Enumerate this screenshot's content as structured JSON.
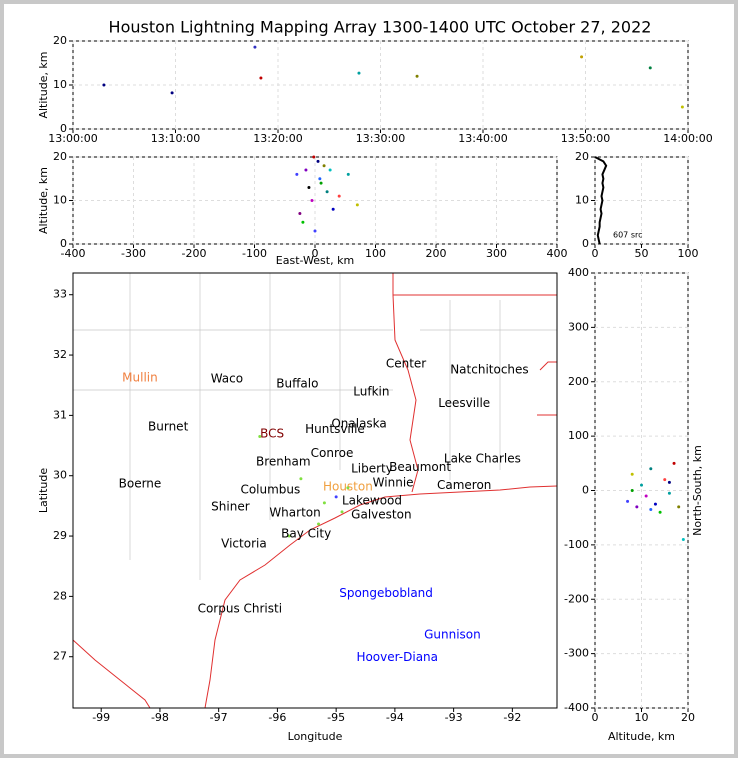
{
  "title": "Houston Lightning Mapping Array 1300-1400 UTC October 27, 2022",
  "chart_data": [
    {
      "type": "scatter",
      "ylabel": "Altitude, km",
      "xlim": [
        "13:00:00",
        "14:00:00"
      ],
      "xticks": [
        "13:00:00",
        "13:10:00",
        "13:20:00",
        "13:30:00",
        "13:40:00",
        "13:50:00",
        "14:00:00"
      ],
      "ylim": [
        0,
        20
      ],
      "yticks": [
        0,
        10,
        20
      ],
      "grid": true,
      "x": [
        "13:03:01",
        "13:09:40",
        "13:17:45",
        "13:18:20",
        "13:27:54",
        "13:33:34",
        "13:49:37",
        "13:56:19",
        "13:59:27"
      ],
      "y": [
        10,
        8.2,
        18.6,
        11.6,
        12.7,
        12,
        16.4,
        13.9,
        5
      ],
      "colors": [
        "#000080",
        "#000080",
        "#3030c0",
        "#c00000",
        "#00a0a0",
        "#808000",
        "#c0a000",
        "#008040",
        "#c0c000"
      ]
    },
    {
      "type": "scatter",
      "xlabel": "East-West, km",
      "ylabel": "Altitude, km",
      "xlim": [
        -400,
        400
      ],
      "xticks": [
        -400,
        -300,
        -200,
        -100,
        0,
        100,
        200,
        300,
        400
      ],
      "ylim": [
        0,
        20
      ],
      "yticks": [
        0,
        10,
        20
      ],
      "grid": true,
      "x": [
        -30,
        -15,
        5,
        10,
        -5,
        20,
        30,
        -20,
        40,
        55,
        0,
        15,
        -10,
        25,
        70,
        -25,
        8,
        -2
      ],
      "y": [
        16,
        17,
        19,
        14,
        10,
        12,
        8,
        5,
        11,
        16,
        3,
        18,
        13,
        17,
        9,
        7,
        15,
        20
      ],
      "colors": [
        "#4040ff",
        "#8000c0",
        "#000080",
        "#00a000",
        "#c000c0",
        "#008080",
        "#0000c0",
        "#00c000",
        "#ff4040",
        "#00a0a0",
        "#4040ff",
        "#808000",
        "#000000",
        "#00c0c0",
        "#c0c000",
        "#800080",
        "#2060ff",
        "#c00000"
      ]
    },
    {
      "type": "line",
      "annotation": "607 src",
      "xlim": [
        0,
        100
      ],
      "xticks": [
        0,
        50,
        100
      ],
      "ylim": [
        0,
        20
      ],
      "yticks": [
        0,
        10,
        20
      ],
      "grid": true,
      "x": [
        5,
        4,
        3,
        4,
        5,
        5,
        6,
        7,
        6,
        7,
        8,
        7,
        8,
        9,
        8,
        9,
        8,
        10,
        12,
        9,
        0
      ],
      "y": [
        0,
        1,
        2,
        3,
        4,
        5,
        6,
        7,
        8,
        9,
        10,
        11,
        12,
        13,
        14,
        15,
        16,
        17,
        18,
        19,
        20
      ],
      "color": "#000000"
    },
    {
      "type": "map",
      "xlabel": "Longitude",
      "ylabel": "Latitude",
      "xlim": [
        -99.48,
        -91.24
      ],
      "xticks": [
        -99,
        -98,
        -97,
        -96,
        -95,
        -94,
        -93,
        -92
      ],
      "ylim": [
        26.15,
        33.36
      ],
      "yticks": [
        27,
        28,
        29,
        30,
        31,
        32,
        33
      ],
      "grid": false,
      "x": [
        -96.3,
        -95.6,
        -95.2,
        -95.3,
        -94.9,
        -95.8,
        -94.8,
        -95.0
      ],
      "y": [
        30.65,
        29.95,
        29.55,
        29.2,
        29.4,
        29.0,
        29.8,
        29.65
      ],
      "colors": [
        "#80e040",
        "#80e040",
        "#80e040",
        "#80e040",
        "#80e040",
        "#80e040",
        "#80e040",
        "#4040ff"
      ],
      "labels": [
        {
          "text": "Mullin",
          "lon": -98.34,
          "lat": 31.62,
          "color": "#f08040"
        },
        {
          "text": "Waco",
          "lon": -96.86,
          "lat": 31.6,
          "color": "#000000"
        },
        {
          "text": "Buffalo",
          "lon": -95.66,
          "lat": 31.52,
          "color": "#000000"
        },
        {
          "text": "Center",
          "lon": -93.81,
          "lat": 31.85,
          "color": "#000000"
        },
        {
          "text": "Natchitoches",
          "lon": -92.39,
          "lat": 31.75,
          "color": "#000000"
        },
        {
          "text": "Lufkin",
          "lon": -94.4,
          "lat": 31.39,
          "color": "#000000"
        },
        {
          "text": "Leesville",
          "lon": -92.82,
          "lat": 31.2,
          "color": "#000000"
        },
        {
          "text": "Burnet",
          "lon": -97.86,
          "lat": 30.81,
          "color": "#000000"
        },
        {
          "text": "BCS",
          "lon": -96.09,
          "lat": 30.69,
          "color": "#800000"
        },
        {
          "text": "Huntsville",
          "lon": -95.02,
          "lat": 30.77,
          "color": "#000000"
        },
        {
          "text": "Onalaska",
          "lon": -94.61,
          "lat": 30.86,
          "color": "#000000"
        },
        {
          "text": "Conroe",
          "lon": -95.07,
          "lat": 30.37,
          "color": "#000000"
        },
        {
          "text": "Lake Charles",
          "lon": -92.51,
          "lat": 30.28,
          "color": "#000000"
        },
        {
          "text": "Brenham",
          "lon": -95.9,
          "lat": 30.23,
          "color": "#000000"
        },
        {
          "text": "Liberty",
          "lon": -94.39,
          "lat": 30.11,
          "color": "#000000"
        },
        {
          "text": "Beaumont",
          "lon": -93.57,
          "lat": 30.14,
          "color": "#000000"
        },
        {
          "text": "Boerne",
          "lon": -98.34,
          "lat": 29.86,
          "color": "#000000"
        },
        {
          "text": "Columbus",
          "lon": -96.12,
          "lat": 29.76,
          "color": "#000000"
        },
        {
          "text": "Houston",
          "lon": -94.8,
          "lat": 29.81,
          "color": "#f0a040"
        },
        {
          "text": "Winnie",
          "lon": -94.03,
          "lat": 29.88,
          "color": "#000000"
        },
        {
          "text": "Cameron",
          "lon": -92.82,
          "lat": 29.84,
          "color": "#000000"
        },
        {
          "text": "Lakewood",
          "lon": -94.39,
          "lat": 29.58,
          "color": "#000000"
        },
        {
          "text": "Shiner",
          "lon": -96.8,
          "lat": 29.48,
          "color": "#000000"
        },
        {
          "text": "Galveston",
          "lon": -94.23,
          "lat": 29.35,
          "color": "#000000"
        },
        {
          "text": "Wharton",
          "lon": -95.7,
          "lat": 29.38,
          "color": "#000000"
        },
        {
          "text": "Bay City",
          "lon": -95.51,
          "lat": 29.03,
          "color": "#000000"
        },
        {
          "text": "Victoria",
          "lon": -96.57,
          "lat": 28.87,
          "color": "#000000"
        },
        {
          "text": "Corpus Christi",
          "lon": -96.64,
          "lat": 27.79,
          "color": "#000000"
        },
        {
          "text": "Spongebobland",
          "lon": -94.15,
          "lat": 28.05,
          "color": "#0000ff"
        },
        {
          "text": "Gunnison",
          "lon": -93.02,
          "lat": 27.36,
          "color": "#0000ff"
        },
        {
          "text": "Hoover-Diana",
          "lon": -93.96,
          "lat": 26.99,
          "color": "#0000ff"
        }
      ]
    },
    {
      "type": "scatter",
      "xlabel": "Altitude, km",
      "ylabel": "North-South, km",
      "xlim": [
        0,
        20
      ],
      "xticks": [
        0,
        10,
        20
      ],
      "ylim": [
        -400,
        400
      ],
      "yticks": [
        -400,
        -300,
        -200,
        -100,
        0,
        100,
        200,
        300,
        400
      ],
      "grid": true,
      "x": [
        7,
        8,
        9,
        10,
        11,
        12,
        13,
        14,
        15,
        16,
        17,
        18,
        19,
        8,
        12,
        16
      ],
      "y": [
        -20,
        0,
        -30,
        10,
        -10,
        40,
        -25,
        -40,
        20,
        -5,
        50,
        -30,
        -90,
        30,
        -35,
        15
      ],
      "colors": [
        "#4040ff",
        "#00a000",
        "#8000c0",
        "#00a0a0",
        "#c000c0",
        "#008080",
        "#0000c0",
        "#00c000",
        "#ff4040",
        "#00a0a0",
        "#c00000",
        "#808000",
        "#00c0c0",
        "#c0c000",
        "#2060ff",
        "#000080"
      ]
    }
  ]
}
